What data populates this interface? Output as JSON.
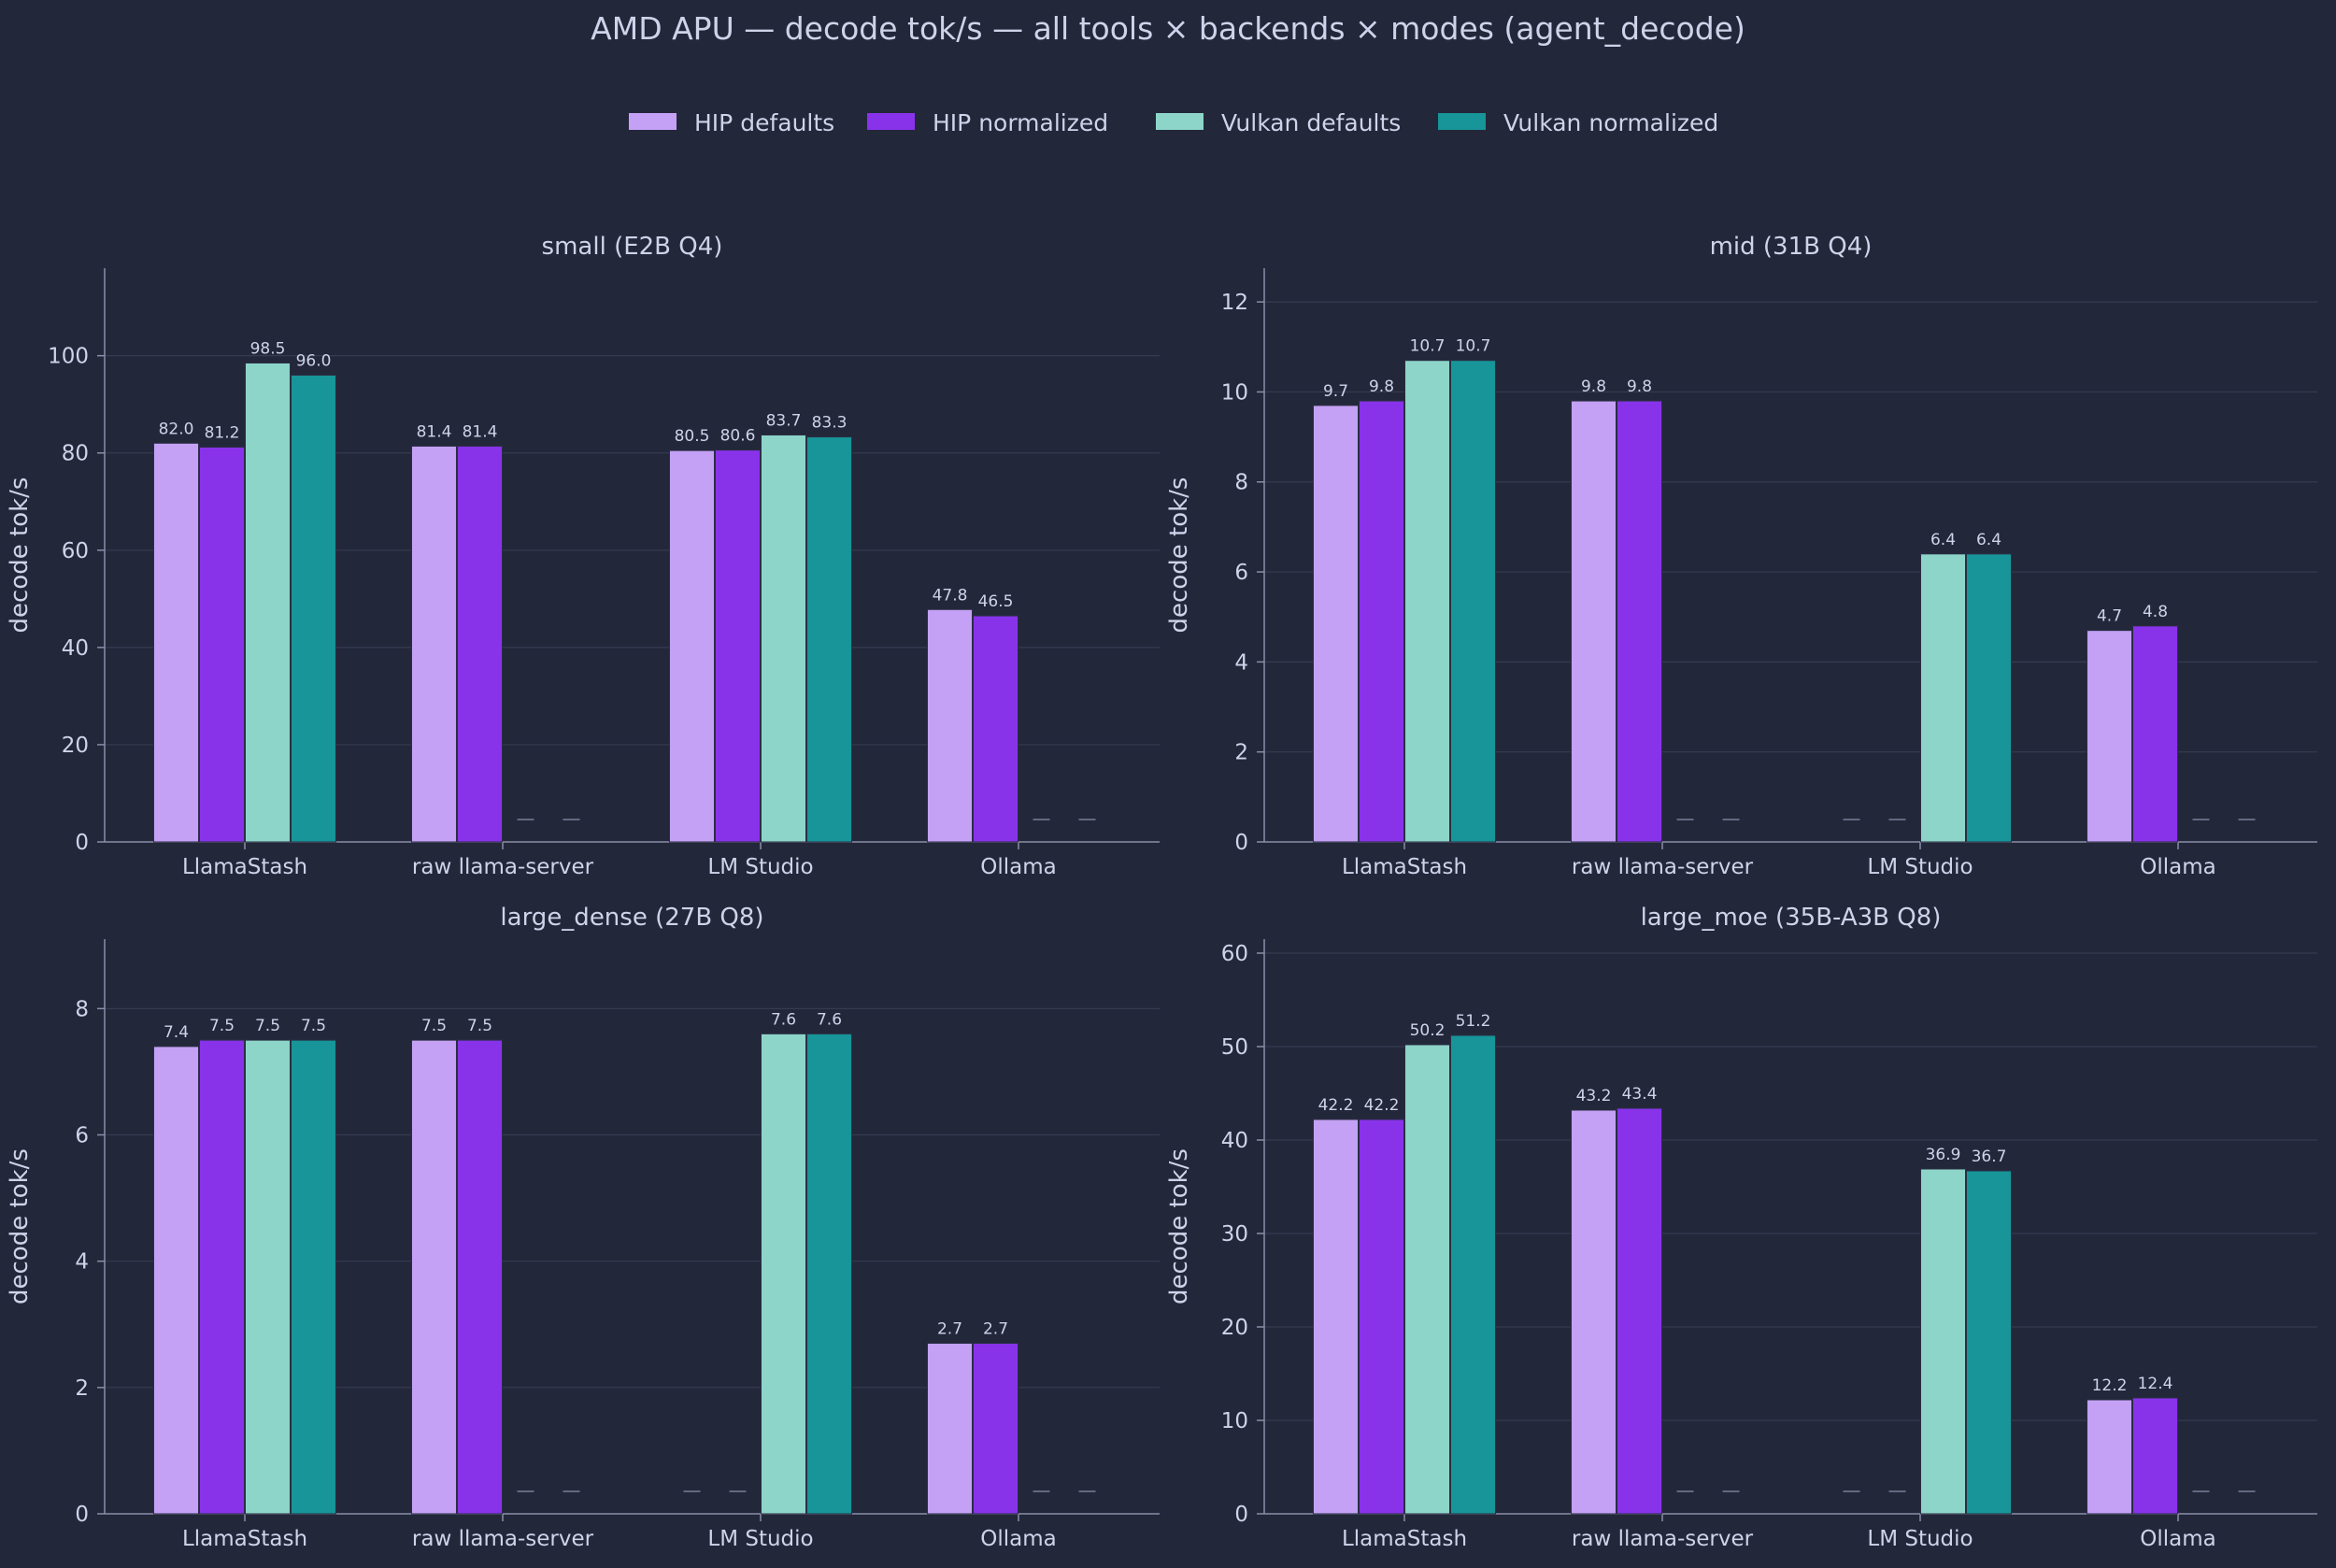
{
  "title": "AMD APU  —  decode tok/s  —  all tools × backends × modes (agent_decode)",
  "legend": [
    {
      "label": "HIP defaults",
      "color": "#c4a1f5"
    },
    {
      "label": "HIP normalized",
      "color": "#8833ea"
    },
    {
      "label": "Vulkan defaults",
      "color": "#8dd5c8"
    },
    {
      "label": "Vulkan normalized",
      "color": "#179598"
    }
  ],
  "chart_data": [
    {
      "type": "bar",
      "title": "small (E2B Q4)",
      "ylabel": "decode tok/s",
      "categories": [
        "LlamaStash",
        "raw llama-server",
        "LM Studio",
        "Ollama"
      ],
      "ylim": [
        0,
        118
      ],
      "yticks": [
        0,
        20,
        40,
        60,
        80,
        100
      ],
      "series": [
        {
          "name": "HIP defaults",
          "values": [
            82.0,
            81.4,
            80.5,
            47.8
          ]
        },
        {
          "name": "HIP normalized",
          "values": [
            81.2,
            81.4,
            80.6,
            46.5
          ]
        },
        {
          "name": "Vulkan defaults",
          "values": [
            98.5,
            null,
            83.7,
            null
          ]
        },
        {
          "name": "Vulkan normalized",
          "values": [
            96.0,
            null,
            83.3,
            null
          ]
        }
      ],
      "missing_mark": "—"
    },
    {
      "type": "bar",
      "title": "mid (31B Q4)",
      "ylabel": "decode tok/s",
      "categories": [
        "LlamaStash",
        "raw llama-server",
        "LM Studio",
        "Ollama"
      ],
      "ylim": [
        0,
        12.75
      ],
      "yticks": [
        0,
        2,
        4,
        6,
        8,
        10,
        12
      ],
      "series": [
        {
          "name": "HIP defaults",
          "values": [
            9.7,
            9.8,
            null,
            4.7
          ]
        },
        {
          "name": "HIP normalized",
          "values": [
            9.8,
            9.8,
            null,
            4.8
          ]
        },
        {
          "name": "Vulkan defaults",
          "values": [
            10.7,
            null,
            6.4,
            null
          ]
        },
        {
          "name": "Vulkan normalized",
          "values": [
            10.7,
            null,
            6.4,
            null
          ]
        }
      ],
      "missing_mark": "—"
    },
    {
      "type": "bar",
      "title": "large_dense (27B Q8)",
      "ylabel": "decode tok/s",
      "categories": [
        "LlamaStash",
        "raw llama-server",
        "LM Studio",
        "Ollama"
      ],
      "ylim": [
        0,
        9.1
      ],
      "yticks": [
        0,
        2,
        4,
        6,
        8
      ],
      "series": [
        {
          "name": "HIP defaults",
          "values": [
            7.4,
            7.5,
            null,
            2.7
          ]
        },
        {
          "name": "HIP normalized",
          "values": [
            7.5,
            7.5,
            null,
            2.7
          ]
        },
        {
          "name": "Vulkan defaults",
          "values": [
            7.5,
            null,
            7.6,
            null
          ]
        },
        {
          "name": "Vulkan normalized",
          "values": [
            7.5,
            null,
            7.6,
            null
          ]
        }
      ],
      "missing_mark": "—"
    },
    {
      "type": "bar",
      "title": "large_moe (35B-A3B Q8)",
      "ylabel": "decode tok/s",
      "categories": [
        "LlamaStash",
        "raw llama-server",
        "LM Studio",
        "Ollama"
      ],
      "ylim": [
        0,
        61.5
      ],
      "yticks": [
        0,
        10,
        20,
        30,
        40,
        50,
        60
      ],
      "series": [
        {
          "name": "HIP defaults",
          "values": [
            42.2,
            43.2,
            null,
            12.2
          ]
        },
        {
          "name": "HIP normalized",
          "values": [
            42.2,
            43.4,
            null,
            12.4
          ]
        },
        {
          "name": "Vulkan defaults",
          "values": [
            50.2,
            null,
            36.9,
            null
          ]
        },
        {
          "name": "Vulkan normalized",
          "values": [
            51.2,
            null,
            36.7,
            null
          ]
        }
      ],
      "missing_mark": "—"
    }
  ]
}
